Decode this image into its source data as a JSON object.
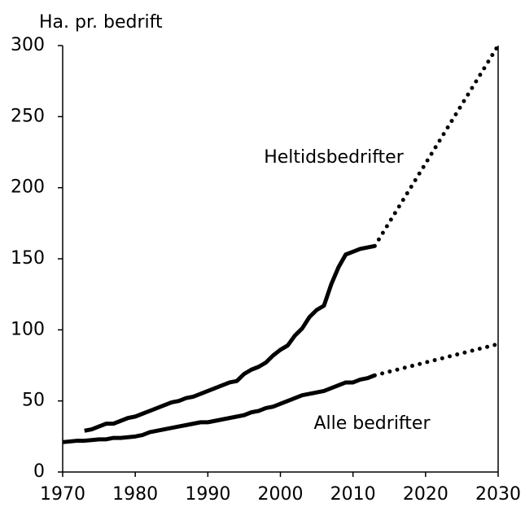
{
  "chart_data": {
    "type": "line",
    "ylabel": "Ha. pr. bedrift",
    "x": [
      1970,
      1971,
      1972,
      1973,
      1974,
      1975,
      1976,
      1977,
      1978,
      1979,
      1980,
      1981,
      1982,
      1983,
      1984,
      1985,
      1986,
      1987,
      1988,
      1989,
      1990,
      1991,
      1992,
      1993,
      1994,
      1995,
      1996,
      1997,
      1998,
      1999,
      2000,
      2001,
      2002,
      2003,
      2004,
      2005,
      2006,
      2007,
      2008,
      2009,
      2010,
      2011,
      2012,
      2013
    ],
    "series": [
      {
        "name": "Heltidsbedrifter",
        "color": "#000000",
        "values": [
          null,
          null,
          null,
          29,
          30,
          32,
          34,
          34,
          36,
          38,
          39,
          41,
          43,
          45,
          47,
          49,
          50,
          52,
          53,
          55,
          57,
          59,
          61,
          63,
          64,
          69,
          72,
          74,
          77,
          82,
          86,
          89,
          96,
          101,
          109,
          114,
          117,
          132,
          144,
          153,
          155,
          157,
          158,
          159
        ],
        "projection_x": [
          2013,
          2030
        ],
        "projection_values": [
          159,
          300
        ]
      },
      {
        "name": "Alle bedrifter",
        "color": "#000000",
        "values": [
          21,
          21.5,
          22,
          22,
          22.5,
          23,
          23,
          24,
          24,
          24.5,
          25,
          26,
          28,
          29,
          30,
          31,
          32,
          33,
          34,
          35,
          35,
          36,
          37,
          38,
          39,
          40,
          42,
          43,
          45,
          46,
          48,
          50,
          52,
          54,
          55,
          56,
          57,
          59,
          61,
          63,
          63,
          65,
          66,
          68
        ],
        "projection_x": [
          2013,
          2030
        ],
        "projection_values": [
          68,
          90
        ]
      }
    ],
    "xlim": [
      1970,
      2030
    ],
    "xticks": [
      1970,
      1980,
      1990,
      2000,
      2010,
      2020,
      2030
    ],
    "ylim": [
      0,
      300
    ],
    "yticks": [
      0,
      50,
      100,
      150,
      200,
      250,
      300
    ],
    "grid": false
  }
}
